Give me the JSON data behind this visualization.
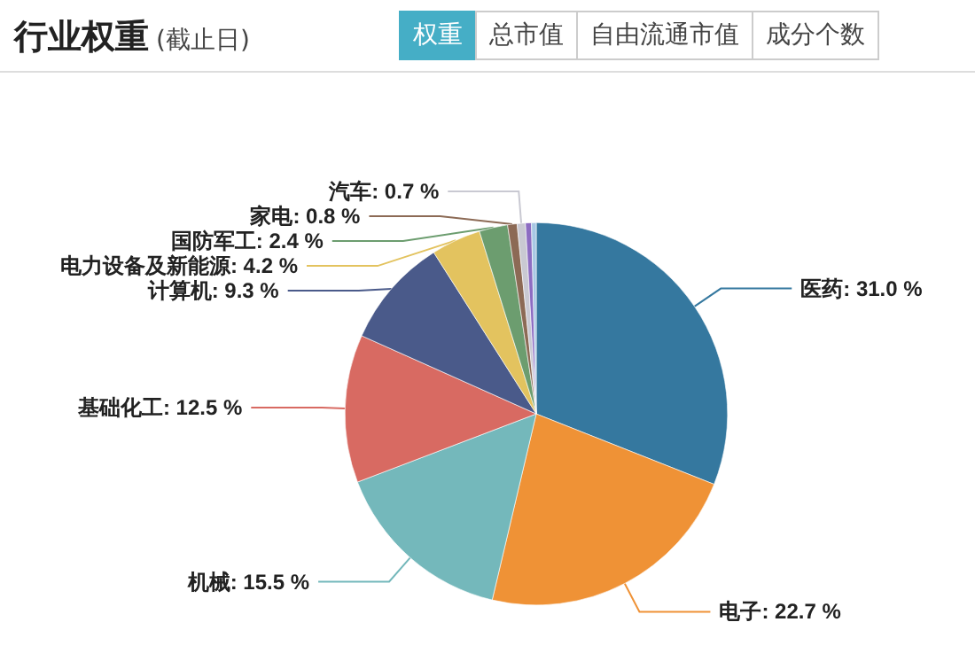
{
  "chart_data": {
    "type": "pie",
    "title": "行业权重",
    "subtitle": "(截止日)",
    "annotations": [
      "权重",
      "总市值",
      "自由流通市值",
      "成分个数"
    ],
    "categories": [
      "医药",
      "电子",
      "机械",
      "基础化工",
      "计算机",
      "电力设备及新能源",
      "国防军工",
      "家电",
      "汽车",
      null,
      null
    ],
    "values": [
      31.0,
      22.7,
      15.5,
      12.5,
      9.3,
      4.2,
      2.4,
      0.8,
      0.7,
      0.5,
      0.4
    ],
    "value_labels": [
      "31.0 %",
      "22.7 %",
      "15.5 %",
      "12.5 %",
      "9.3 %",
      "4.2 %",
      "2.4 %",
      "0.8 %",
      "0.7 %",
      null,
      null
    ],
    "colors": [
      "#35789f",
      "#ef9236",
      "#74b8bb",
      "#d86a62",
      "#4a5a8a",
      "#e3c35f",
      "#6c9d6f",
      "#8c6a55",
      "#c9c9d2",
      "#8d6dc2",
      "#a8c8e4"
    ],
    "legend": false
  }
}
